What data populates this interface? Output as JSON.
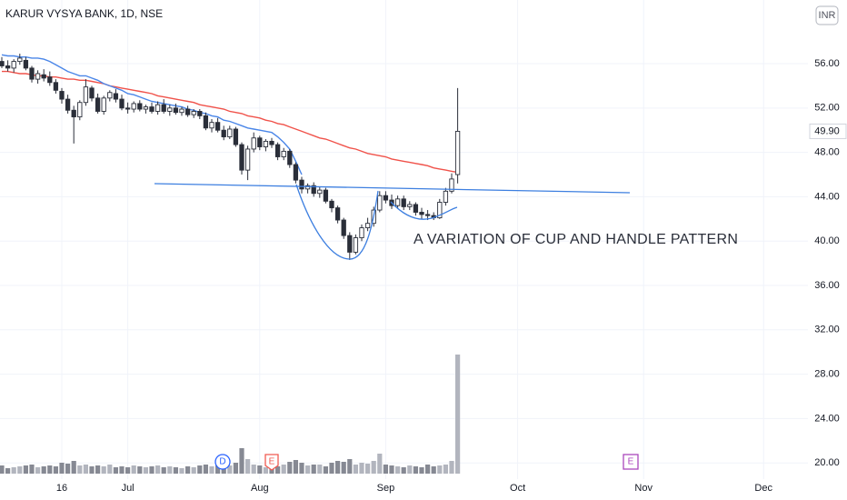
{
  "chart_data": {
    "type": "candlestick",
    "title": "KARUR VYSYA BANK, 1D, NSE",
    "currency": "INR",
    "annotation": "A VARIATION OF CUP AND HANDLE PATTERN",
    "last_close_label": "49.90",
    "events": [
      "D",
      "E",
      "E"
    ],
    "grid": true,
    "ylim": [
      18.54,
      61.74
    ],
    "yticks": [
      {
        "value": 20,
        "label": "20.00"
      },
      {
        "value": 24,
        "label": "24.00"
      },
      {
        "value": 28,
        "label": "28.00"
      },
      {
        "value": 32,
        "label": "32.00"
      },
      {
        "value": 36,
        "label": "36.00"
      },
      {
        "value": 40,
        "label": "40.00"
      },
      {
        "value": 44,
        "label": "44.00"
      },
      {
        "value": 48,
        "label": "48.00"
      },
      {
        "value": 52,
        "label": "52.00"
      },
      {
        "value": 56,
        "label": "56.00"
      }
    ],
    "up_color": "#ffffff",
    "down_color": "#2a2e39",
    "outline_color": "#2a2e39",
    "volume_up_color": "#b2b5be",
    "volume_down_color": "#868993",
    "categories": [
      null,
      null,
      null,
      null,
      null,
      null,
      null,
      null,
      null,
      null,
      "16",
      null,
      null,
      null,
      null,
      null,
      null,
      null,
      null,
      null,
      null,
      "Jul",
      null,
      null,
      null,
      null,
      null,
      null,
      null,
      null,
      null,
      null,
      null,
      null,
      null,
      null,
      null,
      null,
      null,
      null,
      null,
      null,
      null,
      "Aug",
      null,
      null,
      null,
      null,
      null,
      null,
      null,
      null,
      null,
      null,
      null,
      null,
      null,
      null,
      null,
      null,
      null,
      null,
      null,
      null,
      "Sep",
      null,
      null,
      null,
      null,
      null,
      null,
      null,
      null,
      null,
      null,
      null,
      null,
      null,
      null,
      null,
      null,
      null,
      null,
      null,
      null,
      null,
      "Oct",
      null,
      null,
      null,
      null,
      null,
      null,
      null,
      null,
      null,
      null,
      null,
      null,
      null,
      null,
      null,
      null,
      null,
      null,
      null,
      null,
      "Nov",
      null,
      null,
      null,
      null,
      null,
      null,
      null,
      null,
      null,
      null,
      null,
      null,
      null,
      null,
      null,
      null,
      null,
      null,
      null,
      "Dec",
      null,
      null,
      null,
      null,
      null,
      null
    ],
    "open": [
      56.2,
      55.8,
      55.6,
      56.2,
      56.3,
      55.6,
      54.6,
      55.0,
      54.8,
      54.3,
      53.5,
      52.8,
      51.8,
      51.2,
      52.5,
      53.8,
      52.9,
      51.7,
      52.9,
      53.3,
      52.8,
      52.0,
      51.9,
      52.4,
      51.9,
      52.1,
      51.7,
      52.3,
      51.7,
      52.0,
      51.6,
      51.9,
      51.4,
      51.7,
      51.3,
      50.2,
      50.7,
      50.0,
      49.4,
      50.1,
      48.7,
      46.4,
      48.3,
      49.3,
      48.5,
      49.0,
      48.7,
      47.6,
      48.1,
      46.9,
      45.5,
      44.7,
      45.0,
      44.3,
      44.6,
      43.6,
      43.0,
      41.9,
      40.5,
      39.0,
      40.3,
      41.2,
      41.6,
      42.8,
      44.1,
      43.7,
      43.2,
      43.8,
      43.1,
      43.3,
      42.6,
      42.4,
      42.3,
      42.1,
      43.5,
      44.5,
      46.0,
      null,
      null,
      null,
      null,
      null,
      null,
      null,
      null,
      null,
      null,
      null,
      null,
      null,
      null,
      null,
      null,
      null,
      null,
      null,
      null,
      null,
      null,
      null,
      null,
      null,
      null,
      null,
      null,
      null,
      null,
      null,
      null,
      null,
      null,
      null,
      null,
      null,
      null,
      null,
      null,
      null,
      null,
      null,
      null,
      null,
      null,
      null,
      null,
      null,
      null,
      null,
      null,
      null,
      null,
      null,
      null,
      null
    ],
    "high": [
      56.6,
      56.3,
      56.4,
      56.9,
      56.6,
      55.8,
      55.4,
      55.5,
      55.3,
      54.6,
      53.8,
      53.2,
      52.2,
      52.7,
      54.6,
      54.0,
      53.3,
      53.1,
      53.6,
      53.7,
      53.2,
      52.5,
      52.6,
      52.7,
      52.3,
      52.5,
      52.6,
      52.8,
      52.3,
      52.4,
      52.1,
      52.2,
      51.9,
      51.9,
      51.6,
      51.0,
      51.1,
      50.4,
      50.4,
      50.3,
      48.9,
      48.6,
      49.8,
      49.5,
      49.2,
      49.3,
      48.9,
      48.4,
      48.3,
      47.1,
      45.8,
      45.2,
      45.3,
      44.9,
      44.8,
      43.8,
      43.2,
      42.1,
      40.8,
      40.6,
      41.5,
      42.1,
      43.1,
      44.5,
      44.5,
      44.2,
      44.1,
      44.1,
      43.6,
      43.5,
      43.0,
      42.8,
      42.6,
      43.8,
      44.8,
      46.1,
      53.8,
      null,
      null,
      null,
      null,
      null,
      null,
      null,
      null,
      null,
      null,
      null,
      null,
      null,
      null,
      null,
      null,
      null,
      null,
      null,
      null,
      null,
      null,
      null,
      null,
      null,
      null,
      null,
      null,
      null,
      null,
      null,
      null,
      null,
      null,
      null,
      null,
      null,
      null,
      null,
      null,
      null,
      null,
      null,
      null,
      null,
      null,
      null,
      null,
      null,
      null,
      null,
      null,
      null,
      null,
      null,
      null,
      null
    ],
    "low": [
      55.6,
      55.3,
      55.2,
      55.9,
      55.4,
      54.3,
      54.2,
      54.4,
      54.0,
      53.3,
      52.4,
      51.5,
      48.8,
      50.9,
      52.2,
      52.6,
      51.5,
      51.4,
      52.6,
      52.5,
      51.8,
      51.5,
      51.6,
      51.7,
      51.5,
      51.5,
      51.4,
      51.5,
      51.3,
      51.4,
      51.3,
      51.2,
      51.1,
      51.0,
      50.0,
      49.8,
      49.8,
      49.1,
      49.2,
      48.5,
      46.0,
      45.5,
      48.0,
      48.2,
      48.1,
      48.4,
      47.3,
      47.3,
      46.6,
      45.2,
      44.3,
      44.3,
      44.0,
      43.9,
      43.4,
      42.6,
      41.6,
      40.2,
      38.3,
      38.8,
      40.0,
      40.9,
      41.3,
      42.6,
      43.4,
      42.9,
      42.9,
      42.8,
      42.8,
      42.3,
      42.0,
      41.9,
      41.9,
      42.0,
      43.2,
      44.3,
      45.2,
      null,
      null,
      null,
      null,
      null,
      null,
      null,
      null,
      null,
      null,
      null,
      null,
      null,
      null,
      null,
      null,
      null,
      null,
      null,
      null,
      null,
      null,
      null,
      null,
      null,
      null,
      null,
      null,
      null,
      null,
      null,
      null,
      null,
      null,
      null,
      null,
      null,
      null,
      null,
      null,
      null,
      null,
      null,
      null,
      null,
      null,
      null,
      null,
      null,
      null,
      null,
      null,
      null,
      null,
      null,
      null,
      null
    ],
    "close": [
      55.8,
      55.6,
      56.2,
      56.5,
      55.6,
      54.6,
      55.1,
      54.7,
      54.3,
      53.6,
      52.8,
      51.8,
      51.2,
      52.5,
      53.9,
      52.9,
      51.7,
      52.9,
      53.4,
      52.8,
      52.0,
      51.9,
      52.4,
      51.9,
      52.1,
      51.7,
      52.3,
      51.7,
      52.0,
      51.6,
      51.9,
      51.4,
      51.7,
      51.3,
      50.2,
      50.7,
      50.0,
      49.4,
      50.1,
      48.7,
      46.4,
      48.3,
      49.3,
      48.5,
      49.0,
      48.7,
      47.6,
      48.1,
      46.9,
      45.5,
      44.7,
      45.0,
      44.3,
      44.6,
      43.6,
      43.0,
      41.9,
      40.5,
      39.0,
      40.3,
      41.2,
      41.6,
      42.8,
      44.1,
      43.7,
      43.2,
      43.8,
      43.1,
      43.3,
      42.6,
      42.4,
      42.3,
      42.1,
      43.5,
      44.5,
      45.6,
      49.9,
      null,
      null,
      null,
      null,
      null,
      null,
      null,
      null,
      null,
      null,
      null,
      null,
      null,
      null,
      null,
      null,
      null,
      null,
      null,
      null,
      null,
      null,
      null,
      null,
      null,
      null,
      null,
      null,
      null,
      null,
      null,
      null,
      null,
      null,
      null,
      null,
      null,
      null,
      null,
      null,
      null,
      null,
      null,
      null,
      null,
      null,
      null,
      null,
      null,
      null,
      null,
      null,
      null,
      null,
      null,
      null,
      null
    ],
    "volume": [
      9,
      6,
      7,
      8,
      9,
      10,
      7,
      8,
      9,
      8,
      12,
      11,
      14,
      9,
      10,
      8,
      9,
      8,
      10,
      7,
      8,
      7,
      9,
      8,
      7,
      8,
      9,
      7,
      8,
      7,
      6,
      8,
      7,
      9,
      10,
      8,
      9,
      11,
      9,
      12,
      28,
      16,
      10,
      9,
      7,
      12,
      8,
      10,
      13,
      15,
      12,
      9,
      10,
      10,
      8,
      12,
      14,
      13,
      16,
      10,
      12,
      11,
      14,
      22,
      10,
      9,
      8,
      7,
      9,
      8,
      7,
      10,
      8,
      9,
      10,
      14,
      131,
      null,
      null,
      null,
      null,
      null,
      null,
      null,
      null,
      null,
      null,
      null,
      null,
      null,
      null,
      null,
      null,
      null,
      null,
      null,
      null,
      null,
      null,
      null,
      null,
      null,
      null,
      null,
      null,
      null,
      null,
      null,
      null,
      null,
      null,
      null,
      null,
      null,
      null,
      null,
      null,
      null,
      null,
      null,
      null,
      null,
      null,
      null,
      null,
      null,
      null,
      null,
      null,
      null,
      null,
      null,
      null,
      null
    ],
    "series": [
      {
        "color": "#f0524a",
        "values": [
          55.3,
          55.3,
          55.2,
          55.1,
          55.1,
          55.0,
          54.9,
          54.9,
          54.8,
          54.8,
          54.7,
          54.6,
          54.6,
          54.5,
          54.5,
          54.4,
          54.3,
          54.2,
          54.0,
          53.9,
          53.8,
          53.7,
          53.6,
          53.5,
          53.4,
          53.3,
          53.1,
          53.0,
          52.9,
          52.8,
          52.7,
          52.6,
          52.5,
          52.3,
          52.2,
          52.1,
          52.0,
          51.9,
          51.7,
          51.6,
          51.5,
          51.3,
          51.2,
          51.1,
          50.9,
          50.8,
          50.6,
          50.5,
          50.3,
          50.1,
          49.9,
          49.7,
          49.5,
          49.3,
          49.2,
          49.0,
          48.8,
          48.6,
          48.4,
          48.3,
          48.1,
          47.9,
          47.8,
          47.7,
          47.6,
          47.4,
          47.3,
          47.2,
          47.1,
          47.0,
          46.9,
          46.8,
          46.6,
          46.5,
          46.4,
          46.3,
          46.2,
          null,
          null,
          null,
          null,
          null,
          null,
          null,
          null,
          null,
          null,
          null,
          null,
          null,
          null,
          null,
          null,
          null,
          null,
          null,
          null,
          null,
          null,
          null,
          null,
          null,
          null,
          null,
          null,
          null,
          null,
          null,
          null,
          null,
          null,
          null,
          null,
          null,
          null,
          null,
          null,
          null,
          null,
          null,
          null,
          null,
          null,
          null,
          null,
          null,
          null,
          null,
          null,
          null,
          null,
          null,
          null,
          null
        ]
      },
      {
        "color": "#4a86e8",
        "values": [
          56.8,
          56.7,
          56.7,
          56.6,
          56.6,
          56.5,
          56.5,
          56.4,
          56.2,
          55.9,
          55.6,
          55.3,
          55.1,
          54.9,
          54.9,
          54.7,
          54.5,
          54.2,
          54.0,
          53.8,
          53.6,
          53.3,
          53.2,
          53.0,
          52.8,
          52.6,
          52.5,
          52.4,
          52.3,
          52.2,
          52.1,
          51.9,
          51.8,
          51.6,
          51.5,
          51.3,
          51.2,
          50.9,
          50.8,
          50.6,
          50.4,
          50.2,
          50.1,
          50.0,
          49.9,
          49.8,
          49.4,
          48.9,
          48.3,
          47.2,
          46.0,
          null,
          null,
          null,
          null,
          null,
          null,
          null,
          null,
          null,
          null,
          null,
          null,
          null,
          null,
          null,
          null,
          null,
          null,
          null,
          null,
          null,
          null,
          null,
          null,
          null,
          null,
          null,
          null,
          null,
          null,
          null,
          null,
          null,
          null,
          null,
          null,
          null,
          null,
          null,
          null,
          null,
          null,
          null,
          null,
          null,
          null,
          null,
          null,
          null,
          null,
          null,
          null,
          null,
          null,
          null,
          null,
          null,
          null,
          null,
          null,
          null,
          null,
          null,
          null,
          null,
          null,
          null,
          null,
          null,
          null,
          null,
          null,
          null,
          null,
          null,
          null,
          null,
          null,
          null,
          null,
          null,
          null,
          null
        ]
      }
    ]
  }
}
